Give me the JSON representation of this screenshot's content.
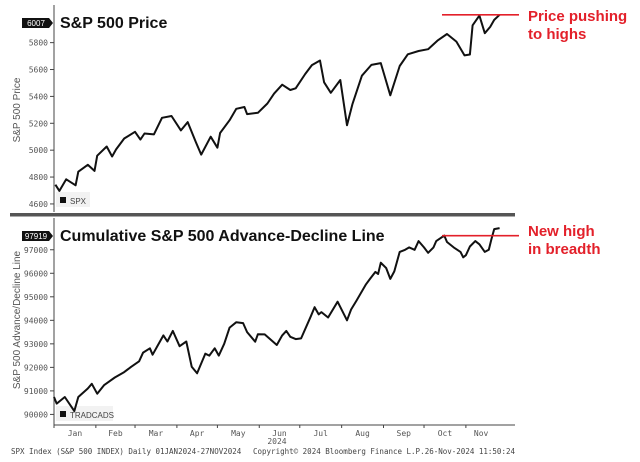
{
  "colors": {
    "line": "#111111",
    "annotation": "#e3202a",
    "separator": "#555555"
  },
  "chart_data": [
    {
      "type": "line",
      "title": "S&P 500 Price",
      "ylabel": "S&P 500 Price",
      "xlabel": "2024",
      "last_value_label": "6007",
      "legend": "SPX",
      "ylim": [
        4540,
        6080
      ],
      "yticks": [
        4600,
        4800,
        5000,
        5200,
        5400,
        5600,
        5800
      ],
      "annotation": {
        "text_line1": "Price pushing",
        "text_line2": "to highs",
        "level": 6007
      },
      "series": [
        {
          "name": "SPX",
          "points": [
            [
              "2024-01-02",
              4743
            ],
            [
              "2024-01-05",
              4697
            ],
            [
              "2024-01-10",
              4783
            ],
            [
              "2024-01-17",
              4739
            ],
            [
              "2024-01-19",
              4840
            ],
            [
              "2024-01-26",
              4891
            ],
            [
              "2024-01-31",
              4846
            ],
            [
              "2024-02-02",
              4959
            ],
            [
              "2024-02-09",
              5027
            ],
            [
              "2024-02-13",
              4953
            ],
            [
              "2024-02-16",
              5006
            ],
            [
              "2024-02-22",
              5087
            ],
            [
              "2024-03-01",
              5137
            ],
            [
              "2024-03-05",
              5079
            ],
            [
              "2024-03-08",
              5124
            ],
            [
              "2024-03-15",
              5117
            ],
            [
              "2024-03-21",
              5241
            ],
            [
              "2024-03-28",
              5254
            ],
            [
              "2024-04-04",
              5147
            ],
            [
              "2024-04-09",
              5209
            ],
            [
              "2024-04-15",
              5061
            ],
            [
              "2024-04-19",
              4967
            ],
            [
              "2024-04-26",
              5100
            ],
            [
              "2024-05-01",
              5018
            ],
            [
              "2024-05-03",
              5128
            ],
            [
              "2024-05-10",
              5223
            ],
            [
              "2024-05-15",
              5308
            ],
            [
              "2024-05-21",
              5321
            ],
            [
              "2024-05-23",
              5268
            ],
            [
              "2024-05-31",
              5278
            ],
            [
              "2024-06-07",
              5347
            ],
            [
              "2024-06-12",
              5421
            ],
            [
              "2024-06-18",
              5487
            ],
            [
              "2024-06-24",
              5448
            ],
            [
              "2024-06-28",
              5460
            ],
            [
              "2024-07-05",
              5567
            ],
            [
              "2024-07-10",
              5633
            ],
            [
              "2024-07-16",
              5667
            ],
            [
              "2024-07-19",
              5505
            ],
            [
              "2024-07-24",
              5427
            ],
            [
              "2024-07-31",
              5522
            ],
            [
              "2024-08-05",
              5186
            ],
            [
              "2024-08-09",
              5344
            ],
            [
              "2024-08-16",
              5554
            ],
            [
              "2024-08-23",
              5634
            ],
            [
              "2024-08-30",
              5648
            ],
            [
              "2024-09-06",
              5408
            ],
            [
              "2024-09-13",
              5626
            ],
            [
              "2024-09-19",
              5713
            ],
            [
              "2024-09-27",
              5738
            ],
            [
              "2024-10-04",
              5751
            ],
            [
              "2024-10-11",
              5815
            ],
            [
              "2024-10-18",
              5864
            ],
            [
              "2024-10-25",
              5808
            ],
            [
              "2024-10-31",
              5705
            ],
            [
              "2024-11-04",
              5712
            ],
            [
              "2024-11-06",
              5929
            ],
            [
              "2024-11-11",
              6001
            ],
            [
              "2024-11-15",
              5870
            ],
            [
              "2024-11-19",
              5917
            ],
            [
              "2024-11-22",
              5969
            ],
            [
              "2024-11-26",
              6007
            ]
          ]
        }
      ]
    },
    {
      "type": "line",
      "title": "Cumulative S&P 500 Advance-Decline Line",
      "ylabel": "S&P 500 Advance/Decline Line",
      "xlabel": "2024",
      "last_value_label": "97919",
      "legend": "TRADCADS",
      "ylim": [
        89550,
        98350
      ],
      "yticks": [
        90000,
        91000,
        92000,
        93000,
        94000,
        95000,
        96000,
        97000
      ],
      "annotation": {
        "text_line1": "New high",
        "text_line2": "in breadth",
        "level": 97600
      },
      "series": [
        {
          "name": "TRADCADS",
          "points": [
            [
              "2024-01-01",
              90740
            ],
            [
              "2024-01-03",
              90460
            ],
            [
              "2024-01-09",
              90740
            ],
            [
              "2024-01-16",
              90140
            ],
            [
              "2024-01-19",
              90740
            ],
            [
              "2024-01-26",
              91100
            ],
            [
              "2024-01-29",
              91300
            ],
            [
              "2024-02-02",
              90880
            ],
            [
              "2024-02-07",
              91240
            ],
            [
              "2024-02-15",
              91570
            ],
            [
              "2024-02-22",
              91800
            ],
            [
              "2024-02-27",
              92020
            ],
            [
              "2024-03-04",
              92260
            ],
            [
              "2024-03-07",
              92630
            ],
            [
              "2024-03-12",
              92810
            ],
            [
              "2024-03-14",
              92540
            ],
            [
              "2024-03-18",
              92950
            ],
            [
              "2024-03-22",
              93360
            ],
            [
              "2024-03-25",
              93100
            ],
            [
              "2024-03-29",
              93550
            ],
            [
              "2024-04-03",
              92900
            ],
            [
              "2024-04-08",
              93100
            ],
            [
              "2024-04-12",
              92030
            ],
            [
              "2024-04-16",
              91750
            ],
            [
              "2024-04-22",
              92580
            ],
            [
              "2024-04-25",
              92500
            ],
            [
              "2024-04-29",
              92810
            ],
            [
              "2024-05-02",
              92500
            ],
            [
              "2024-05-06",
              93000
            ],
            [
              "2024-05-10",
              93690
            ],
            [
              "2024-05-15",
              93920
            ],
            [
              "2024-05-20",
              93880
            ],
            [
              "2024-05-23",
              93500
            ],
            [
              "2024-05-29",
              93090
            ],
            [
              "2024-05-31",
              93410
            ],
            [
              "2024-06-05",
              93400
            ],
            [
              "2024-06-14",
              92950
            ],
            [
              "2024-06-18",
              93360
            ],
            [
              "2024-06-21",
              93550
            ],
            [
              "2024-06-24",
              93300
            ],
            [
              "2024-06-28",
              93200
            ],
            [
              "2024-07-02",
              93230
            ],
            [
              "2024-07-09",
              94150
            ],
            [
              "2024-07-12",
              94560
            ],
            [
              "2024-07-15",
              94250
            ],
            [
              "2024-07-17",
              94350
            ],
            [
              "2024-07-22",
              94120
            ],
            [
              "2024-07-29",
              94790
            ],
            [
              "2024-08-05",
              94000
            ],
            [
              "2024-08-08",
              94460
            ],
            [
              "2024-08-12",
              94840
            ],
            [
              "2024-08-19",
              95530
            ],
            [
              "2024-08-22",
              95760
            ],
            [
              "2024-08-26",
              96060
            ],
            [
              "2024-08-28",
              95970
            ],
            [
              "2024-08-30",
              96450
            ],
            [
              "2024-09-03",
              96220
            ],
            [
              "2024-09-06",
              95760
            ],
            [
              "2024-09-09",
              96080
            ],
            [
              "2024-09-13",
              96910
            ],
            [
              "2024-09-17",
              97000
            ],
            [
              "2024-09-20",
              97100
            ],
            [
              "2024-09-24",
              97000
            ],
            [
              "2024-09-27",
              97370
            ],
            [
              "2024-10-01",
              97100
            ],
            [
              "2024-10-04",
              96870
            ],
            [
              "2024-10-08",
              97100
            ],
            [
              "2024-10-10",
              97370
            ],
            [
              "2024-10-16",
              97600
            ],
            [
              "2024-10-18",
              97330
            ],
            [
              "2024-10-23",
              97100
            ],
            [
              "2024-10-28",
              96910
            ],
            [
              "2024-10-30",
              96680
            ],
            [
              "2024-11-01",
              96770
            ],
            [
              "2024-11-04",
              97140
            ],
            [
              "2024-11-08",
              97370
            ],
            [
              "2024-11-11",
              97230
            ],
            [
              "2024-11-15",
              96910
            ],
            [
              "2024-11-18",
              97000
            ],
            [
              "2024-11-20",
              97460
            ],
            [
              "2024-11-22",
              97880
            ],
            [
              "2024-11-26",
              97919
            ]
          ]
        }
      ]
    }
  ],
  "x_axis": {
    "months": [
      "Jan",
      "Feb",
      "Mar",
      "Apr",
      "May",
      "Jun",
      "Jul",
      "Aug",
      "Sep",
      "Oct",
      "Nov"
    ],
    "year": "2024",
    "range": [
      "2024-01-01",
      "2024-11-27"
    ]
  },
  "footer": {
    "left": "SPX Index (S&P 500 INDEX)  Daily 01JAN2024-27NOV2024",
    "middle": "Copyright© 2024 Bloomberg Finance L.P.",
    "right": "26-Nov-2024 11:50:24"
  }
}
